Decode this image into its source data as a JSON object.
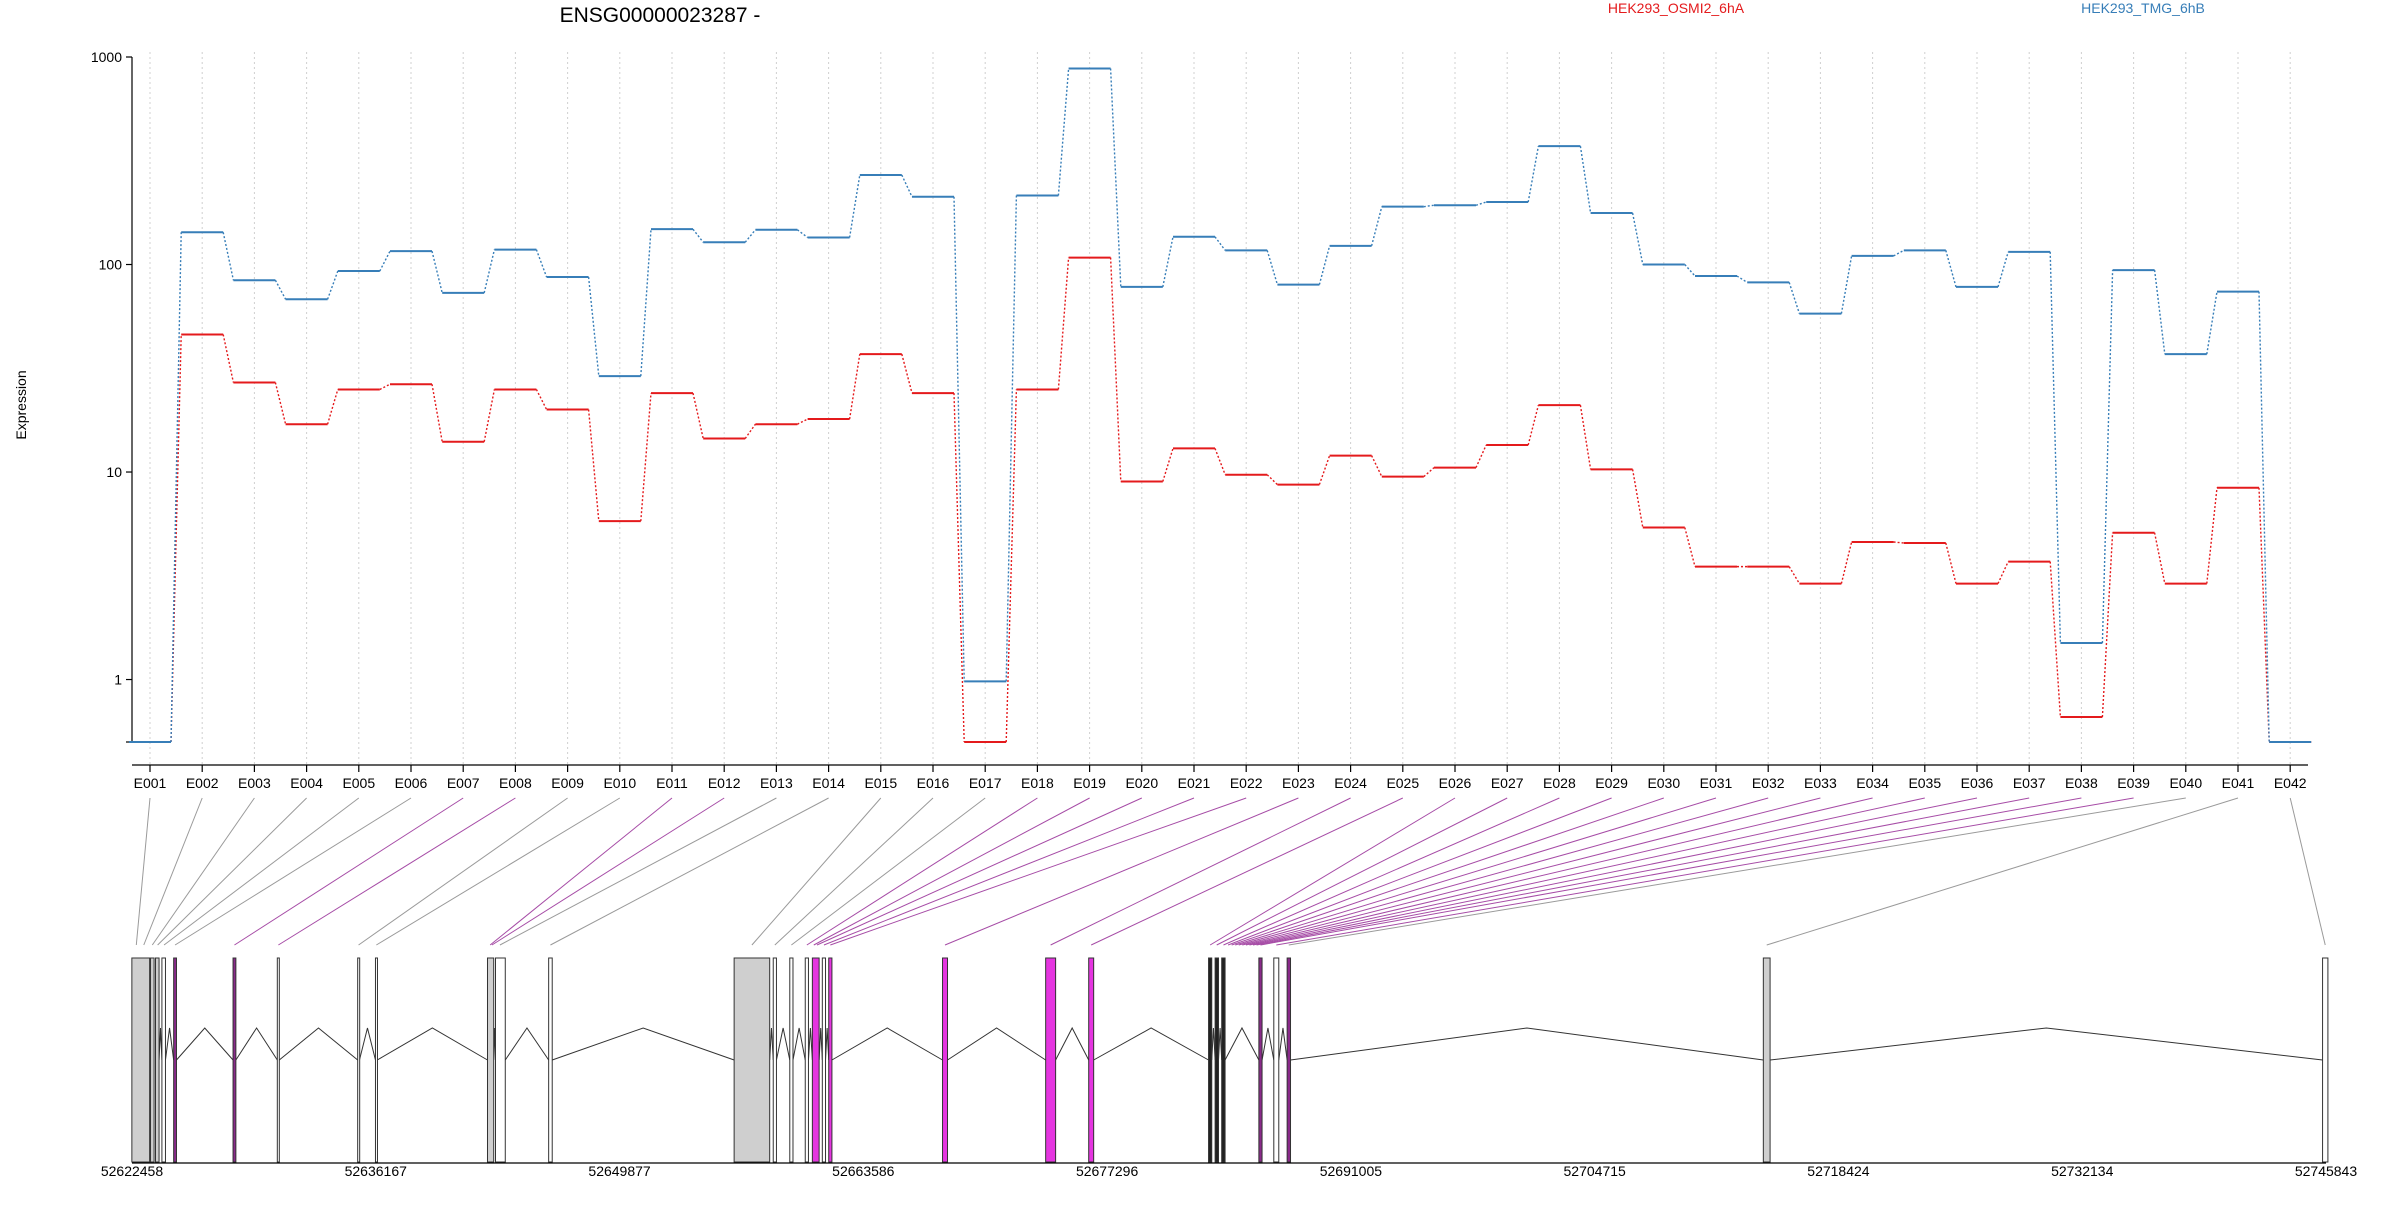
{
  "chart_data": {
    "type": "line",
    "title": "ENSG00000023287 -",
    "ylabel": "Expression",
    "yscale": "log",
    "yticks": [
      "1",
      "10",
      "100",
      "1000"
    ],
    "ytick_values": [
      1,
      10,
      100,
      1000
    ],
    "ylim": [
      0.5,
      1000
    ],
    "legend_placement": "top",
    "grid": "vertical-dotted",
    "categories": [
      "E001",
      "E002",
      "E003",
      "E004",
      "E005",
      "E006",
      "E007",
      "E008",
      "E009",
      "E010",
      "E011",
      "E012",
      "E013",
      "E014",
      "E015",
      "E016",
      "E017",
      "E018",
      "E019",
      "E020",
      "E021",
      "E022",
      "E023",
      "E024",
      "E025",
      "E026",
      "E027",
      "E028",
      "E029",
      "E030",
      "E031",
      "E032",
      "E033",
      "E034",
      "E035",
      "E036",
      "E037",
      "E038",
      "E039",
      "E040",
      "E041",
      "E042"
    ],
    "series": [
      {
        "name": "HEK293_OSMI2_6hA",
        "color": "#e41a1c",
        "values": [
          0.5,
          46,
          27,
          17,
          25,
          26.5,
          14,
          25,
          20,
          5.8,
          24,
          14.5,
          17,
          18,
          37,
          24,
          0.5,
          25,
          108,
          9,
          13,
          9.7,
          8.7,
          12,
          9.5,
          10.5,
          13.5,
          21,
          10.3,
          5.4,
          3.5,
          3.5,
          2.9,
          4.6,
          4.55,
          2.9,
          3.7,
          0.66,
          5.1,
          2.9,
          8.4,
          0.5
        ]
      },
      {
        "name": "HEK293_TMG_6hB",
        "color": "#377eb8",
        "values": [
          0.5,
          143,
          84,
          68,
          93,
          116,
          73,
          118,
          87,
          29,
          148,
          128,
          147,
          135,
          270,
          212,
          0.98,
          215,
          880,
          78,
          136,
          117,
          80,
          123,
          190,
          193,
          200,
          372,
          177,
          100,
          88,
          82,
          58,
          110,
          117,
          78,
          115,
          1.5,
          94,
          37,
          74,
          0.5
        ]
      }
    ],
    "gene_model": {
      "coordinate_labels": [
        "52622458",
        "52636167",
        "52649877",
        "52663586",
        "52677296",
        "52691005",
        "52704715",
        "52718424",
        "52732134",
        "52745843"
      ],
      "coordinate_values": [
        52622458,
        52636167,
        52649877,
        52663586,
        52677296,
        52691005,
        52704715,
        52718424,
        52732134,
        52745843
      ],
      "highlight_color": "#e535e0",
      "exons": [
        {
          "start": 52622450,
          "end": 52623450,
          "fill": "#cfcfcf",
          "highlight": false
        },
        {
          "start": 52623500,
          "end": 52623700,
          "fill": "#cfcfcf",
          "highlight": false
        },
        {
          "start": 52623780,
          "end": 52623980,
          "fill": "#cfcfcf",
          "highlight": false
        },
        {
          "start": 52624140,
          "end": 52624340,
          "fill": "#ffffff",
          "highlight": false
        },
        {
          "start": 52624800,
          "end": 52624960,
          "fill": "#8a2a8a",
          "highlight": true
        },
        {
          "start": 52628140,
          "end": 52628300,
          "fill": "#8a2a8a",
          "highlight": true
        },
        {
          "start": 52630630,
          "end": 52630740,
          "fill": "#ffffff",
          "highlight": false
        },
        {
          "start": 52635150,
          "end": 52635250,
          "fill": "#ffffff",
          "highlight": false
        },
        {
          "start": 52636150,
          "end": 52636250,
          "fill": "#ffffff",
          "highlight": false
        },
        {
          "start": 52642450,
          "end": 52642800,
          "fill": "#cfcfcf",
          "highlight": false
        },
        {
          "start": 52642900,
          "end": 52643450,
          "fill": "#ffffff",
          "highlight": false
        },
        {
          "start": 52645890,
          "end": 52646090,
          "fill": "#ffffff",
          "highlight": false
        },
        {
          "start": 52656320,
          "end": 52658320,
          "fill": "#cfcfcf",
          "highlight": false
        },
        {
          "start": 52658520,
          "end": 52658700,
          "fill": "#ffffff",
          "highlight": false
        },
        {
          "start": 52659450,
          "end": 52659630,
          "fill": "#ffffff",
          "highlight": false
        },
        {
          "start": 52660320,
          "end": 52660500,
          "fill": "#ffffff",
          "highlight": false
        },
        {
          "start": 52660720,
          "end": 52661100,
          "fill": "#e535e0",
          "highlight": true
        },
        {
          "start": 52661280,
          "end": 52661460,
          "fill": "#ffffff",
          "highlight": false
        },
        {
          "start": 52661640,
          "end": 52661820,
          "fill": "#e535e0",
          "highlight": true
        },
        {
          "start": 52668040,
          "end": 52668320,
          "fill": "#e535e0",
          "highlight": true
        },
        {
          "start": 52673840,
          "end": 52674400,
          "fill": "#e535e0",
          "highlight": true
        },
        {
          "start": 52676260,
          "end": 52676540,
          "fill": "#e535e0",
          "highlight": true
        },
        {
          "start": 52683000,
          "end": 52683180,
          "fill": "#222222",
          "highlight": false
        },
        {
          "start": 52683370,
          "end": 52683560,
          "fill": "#222222",
          "highlight": false
        },
        {
          "start": 52683740,
          "end": 52683930,
          "fill": "#222222",
          "highlight": false
        },
        {
          "start": 52685830,
          "end": 52686010,
          "fill": "#8a2a8a",
          "highlight": true
        },
        {
          "start": 52686670,
          "end": 52686950,
          "fill": "#ffffff",
          "highlight": false
        },
        {
          "start": 52687420,
          "end": 52687610,
          "fill": "#8a2a8a",
          "highlight": true
        },
        {
          "start": 52714200,
          "end": 52714580,
          "fill": "#cfcfcf",
          "highlight": false
        },
        {
          "start": 52745650,
          "end": 52745950,
          "fill": "#ffffff",
          "highlight": false
        }
      ],
      "connector_targets": [
        52622700,
        52623120,
        52623600,
        52623900,
        52624260,
        52624880,
        52628220,
        52630690,
        52635200,
        52636200,
        52642600,
        52642700,
        52643150,
        52645990,
        52657320,
        52658610,
        52659540,
        52660410,
        52660800,
        52660980,
        52661370,
        52661730,
        52668180,
        52674120,
        52676400,
        52683090,
        52683460,
        52683840,
        52684100,
        52684300,
        52684500,
        52684700,
        52684900,
        52685100,
        52685300,
        52685500,
        52685700,
        52685920,
        52686810,
        52687510,
        52714390,
        52745800
      ],
      "highlighted_connectors": [
        6,
        7,
        10,
        11,
        17,
        18,
        19,
        20,
        21,
        22,
        23,
        24,
        25,
        26,
        27,
        28,
        29,
        30,
        31,
        32,
        33,
        34,
        35,
        36,
        37,
        38
      ]
    }
  }
}
